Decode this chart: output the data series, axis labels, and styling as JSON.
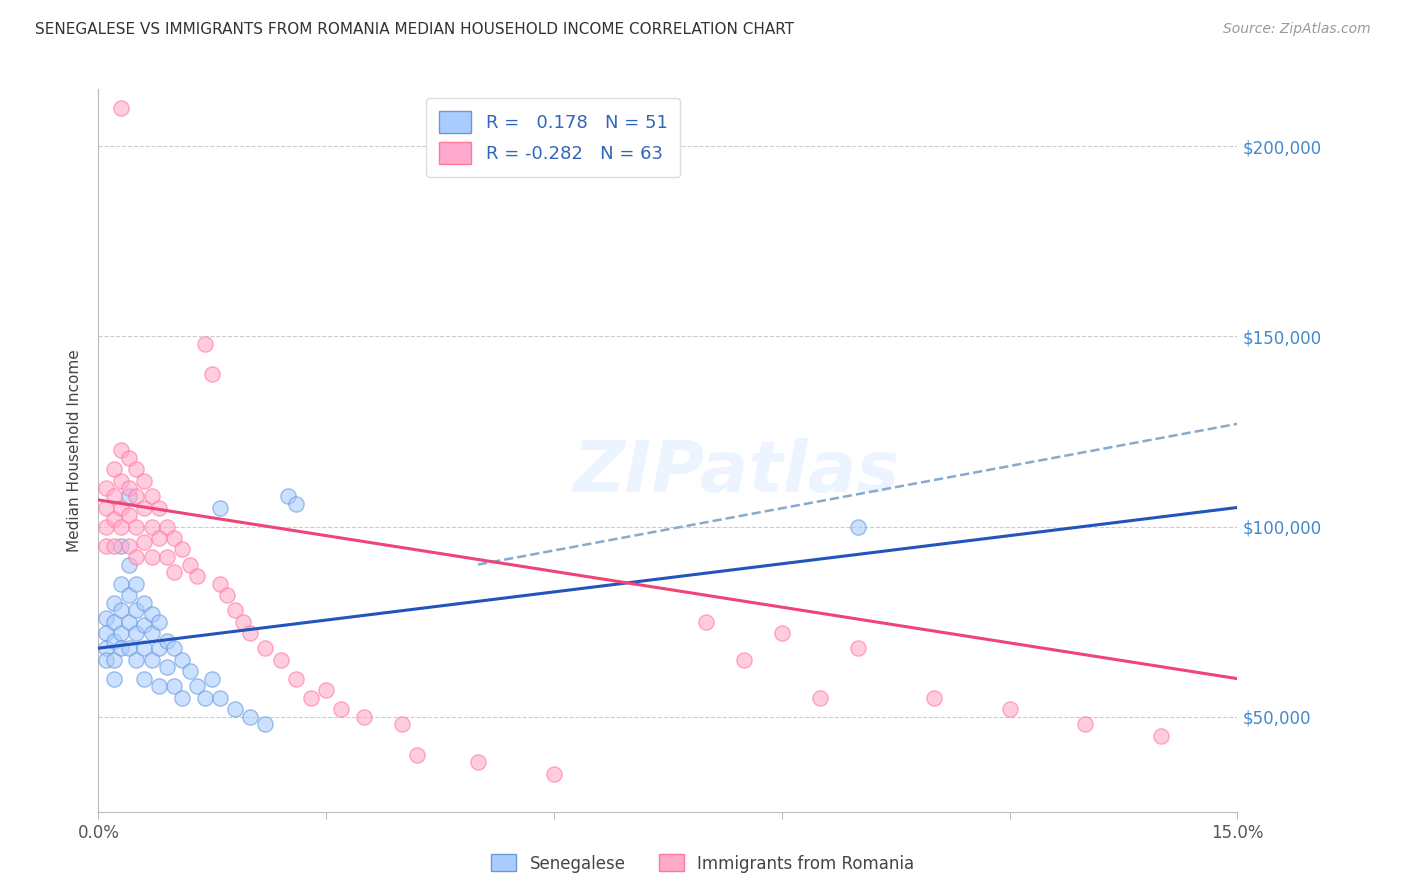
{
  "title": "SENEGALESE VS IMMIGRANTS FROM ROMANIA MEDIAN HOUSEHOLD INCOME CORRELATION CHART",
  "source": "Source: ZipAtlas.com",
  "ylabel": "Median Household Income",
  "yticks": [
    50000,
    100000,
    150000,
    200000
  ],
  "ytick_labels": [
    "$50,000",
    "$100,000",
    "$150,000",
    "$200,000"
  ],
  "xlim": [
    0.0,
    0.15
  ],
  "ylim": [
    25000,
    215000
  ],
  "watermark": "ZIPatlas",
  "senegalese_label": "Senegalese",
  "romania_label": "Immigrants from Romania",
  "blue_scatter": [
    [
      0.001,
      76000
    ],
    [
      0.001,
      72000
    ],
    [
      0.001,
      68000
    ],
    [
      0.001,
      65000
    ],
    [
      0.002,
      80000
    ],
    [
      0.002,
      75000
    ],
    [
      0.002,
      70000
    ],
    [
      0.002,
      65000
    ],
    [
      0.002,
      60000
    ],
    [
      0.003,
      95000
    ],
    [
      0.003,
      85000
    ],
    [
      0.003,
      78000
    ],
    [
      0.003,
      72000
    ],
    [
      0.003,
      68000
    ],
    [
      0.004,
      108000
    ],
    [
      0.004,
      90000
    ],
    [
      0.004,
      82000
    ],
    [
      0.004,
      75000
    ],
    [
      0.004,
      68000
    ],
    [
      0.005,
      85000
    ],
    [
      0.005,
      78000
    ],
    [
      0.005,
      72000
    ],
    [
      0.005,
      65000
    ],
    [
      0.006,
      80000
    ],
    [
      0.006,
      74000
    ],
    [
      0.006,
      68000
    ],
    [
      0.006,
      60000
    ],
    [
      0.007,
      77000
    ],
    [
      0.007,
      72000
    ],
    [
      0.007,
      65000
    ],
    [
      0.008,
      75000
    ],
    [
      0.008,
      68000
    ],
    [
      0.008,
      58000
    ],
    [
      0.009,
      70000
    ],
    [
      0.009,
      63000
    ],
    [
      0.01,
      68000
    ],
    [
      0.01,
      58000
    ],
    [
      0.011,
      65000
    ],
    [
      0.011,
      55000
    ],
    [
      0.012,
      62000
    ],
    [
      0.013,
      58000
    ],
    [
      0.014,
      55000
    ],
    [
      0.015,
      60000
    ],
    [
      0.016,
      105000
    ],
    [
      0.016,
      55000
    ],
    [
      0.018,
      52000
    ],
    [
      0.02,
      50000
    ],
    [
      0.022,
      48000
    ],
    [
      0.025,
      108000
    ],
    [
      0.026,
      106000
    ],
    [
      0.1,
      100000
    ]
  ],
  "pink_scatter": [
    [
      0.001,
      110000
    ],
    [
      0.001,
      105000
    ],
    [
      0.001,
      100000
    ],
    [
      0.001,
      95000
    ],
    [
      0.002,
      115000
    ],
    [
      0.002,
      108000
    ],
    [
      0.002,
      102000
    ],
    [
      0.002,
      95000
    ],
    [
      0.003,
      120000
    ],
    [
      0.003,
      112000
    ],
    [
      0.003,
      105000
    ],
    [
      0.003,
      100000
    ],
    [
      0.003,
      210000
    ],
    [
      0.004,
      118000
    ],
    [
      0.004,
      110000
    ],
    [
      0.004,
      103000
    ],
    [
      0.004,
      95000
    ],
    [
      0.005,
      115000
    ],
    [
      0.005,
      108000
    ],
    [
      0.005,
      100000
    ],
    [
      0.005,
      92000
    ],
    [
      0.006,
      112000
    ],
    [
      0.006,
      105000
    ],
    [
      0.006,
      96000
    ],
    [
      0.007,
      108000
    ],
    [
      0.007,
      100000
    ],
    [
      0.007,
      92000
    ],
    [
      0.008,
      105000
    ],
    [
      0.008,
      97000
    ],
    [
      0.009,
      100000
    ],
    [
      0.009,
      92000
    ],
    [
      0.01,
      97000
    ],
    [
      0.01,
      88000
    ],
    [
      0.011,
      94000
    ],
    [
      0.012,
      90000
    ],
    [
      0.013,
      87000
    ],
    [
      0.014,
      148000
    ],
    [
      0.015,
      140000
    ],
    [
      0.016,
      85000
    ],
    [
      0.017,
      82000
    ],
    [
      0.018,
      78000
    ],
    [
      0.019,
      75000
    ],
    [
      0.02,
      72000
    ],
    [
      0.022,
      68000
    ],
    [
      0.024,
      65000
    ],
    [
      0.026,
      60000
    ],
    [
      0.028,
      55000
    ],
    [
      0.03,
      57000
    ],
    [
      0.032,
      52000
    ],
    [
      0.035,
      50000
    ],
    [
      0.04,
      48000
    ],
    [
      0.042,
      40000
    ],
    [
      0.05,
      38000
    ],
    [
      0.06,
      35000
    ],
    [
      0.08,
      75000
    ],
    [
      0.085,
      65000
    ],
    [
      0.09,
      72000
    ],
    [
      0.095,
      55000
    ],
    [
      0.1,
      68000
    ],
    [
      0.11,
      55000
    ],
    [
      0.12,
      52000
    ],
    [
      0.13,
      48000
    ],
    [
      0.14,
      45000
    ]
  ],
  "blue_line_x": [
    0.0,
    0.15
  ],
  "blue_line_y": [
    68000,
    105000
  ],
  "pink_line_x": [
    0.0,
    0.15
  ],
  "pink_line_y": [
    107000,
    60000
  ],
  "blue_dash_line_x": [
    0.05,
    0.15
  ],
  "blue_dash_line_y": [
    90000,
    127000
  ]
}
